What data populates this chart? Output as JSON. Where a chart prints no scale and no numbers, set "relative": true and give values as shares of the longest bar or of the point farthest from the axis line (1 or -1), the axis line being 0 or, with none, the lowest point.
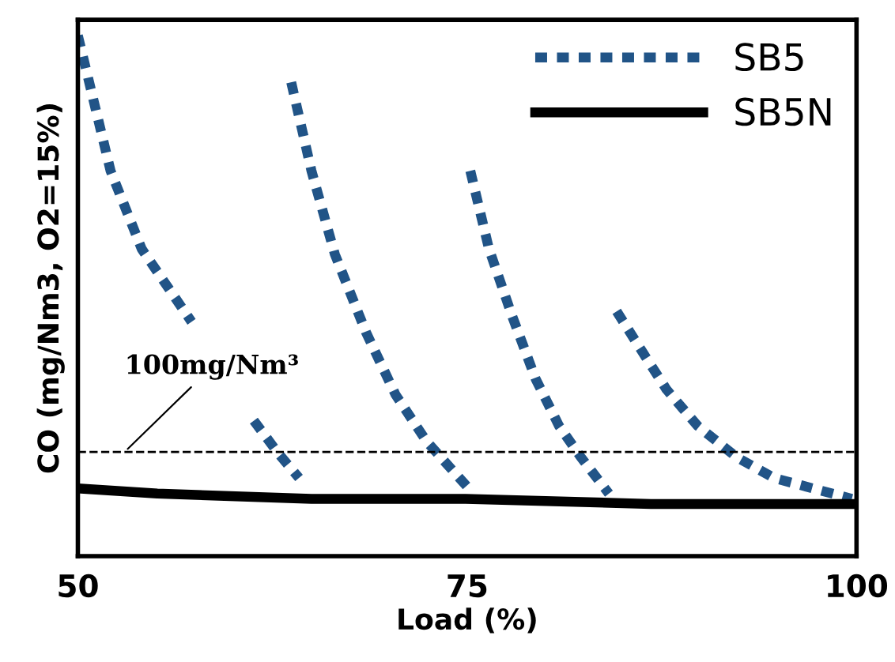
{
  "chart_data": {
    "type": "line",
    "relative": true,
    "xlabel": "Load (%)",
    "ylabel": "CO (mg/Nm3, O2=15%)",
    "xlim": [
      50,
      100
    ],
    "xticks": [
      50,
      75,
      100
    ],
    "grid": false,
    "legend": "top right",
    "tick_labels": "x",
    "series": [
      {
        "name": "SB5",
        "color": "#215487",
        "line_style": "dotted",
        "x": [
          50,
          52.1,
          54.1,
          57.3,
          null,
          61.3,
          62.8,
          64.2,
          null,
          63.7,
          65.0,
          66.5,
          68.5,
          70.4,
          72.4,
          73.9,
          75.1,
          null,
          75.2,
          76.4,
          77.9,
          79.4,
          80.9,
          82.3,
          84.1,
          null,
          84.6,
          86.3,
          87.8,
          89.8,
          92.3,
          94.7,
          97.2,
          99.7
        ],
        "values": [
          1.0,
          0.74,
          0.59,
          0.45,
          null,
          0.26,
          0.2,
          0.15,
          null,
          0.91,
          0.74,
          0.58,
          0.43,
          0.31,
          0.22,
          0.17,
          0.13,
          null,
          0.74,
          0.59,
          0.46,
          0.34,
          0.25,
          0.19,
          0.12,
          null,
          0.47,
          0.39,
          0.32,
          0.25,
          0.19,
          0.15,
          0.13,
          0.11
        ]
      },
      {
        "name": "SB5N",
        "color": "#000000",
        "line_style": "solid",
        "x": [
          50,
          55.1,
          65,
          74.9,
          86.8,
          100
        ],
        "values": [
          0.13,
          0.12,
          0.11,
          0.11,
          0.1,
          0.1
        ]
      }
    ],
    "ref_lines": [
      {
        "axis": "y",
        "value": 0.2,
        "label": "100mg/Nm³",
        "color": "#000000",
        "line_style": "dashed"
      }
    ]
  }
}
